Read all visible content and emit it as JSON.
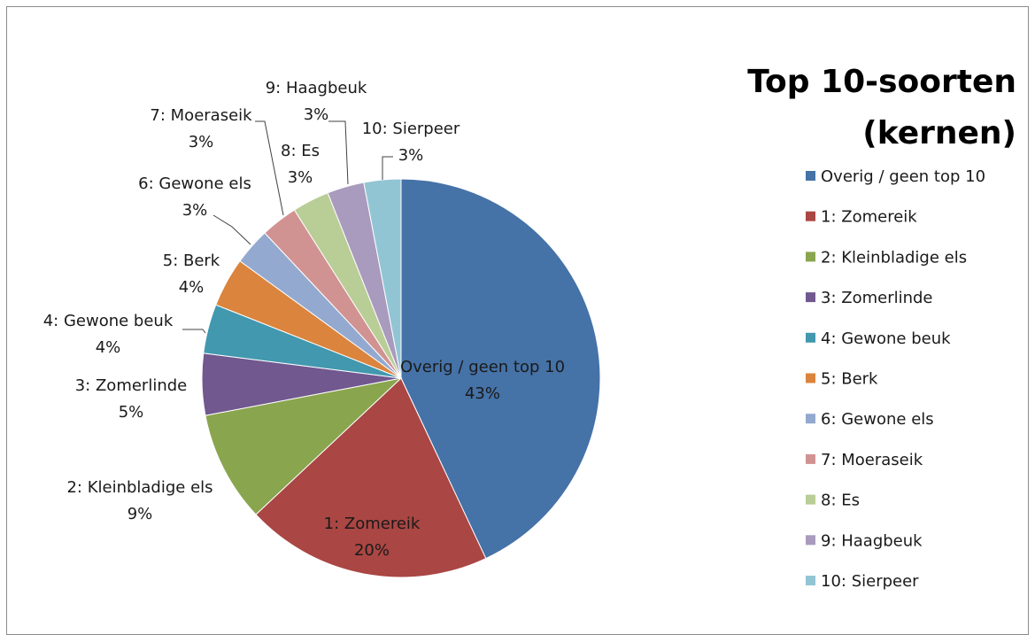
{
  "chart_data": {
    "type": "pie",
    "title_lines": [
      "Top 10-soorten",
      "(kernen)"
    ],
    "legend_position": "right",
    "slices": [
      {
        "name": "Overig / geen top 10",
        "value": 43,
        "label": "43%",
        "color": "#4572a7"
      },
      {
        "name": "1: Zomereik",
        "value": 20,
        "label": "20%",
        "color": "#aa4643"
      },
      {
        "name": "2: Kleinbladige els",
        "value": 9,
        "label": "9%",
        "color": "#89a54e"
      },
      {
        "name": "3: Zomerlinde",
        "value": 5,
        "label": "5%",
        "color": "#71588f"
      },
      {
        "name": "4: Gewone beuk",
        "value": 4,
        "label": "4%",
        "color": "#4198af"
      },
      {
        "name": "5: Berk",
        "value": 4,
        "label": "4%",
        "color": "#db843d"
      },
      {
        "name": "6: Gewone els",
        "value": 3,
        "label": "3%",
        "color": "#93a9cf"
      },
      {
        "name": "7: Moeraseik",
        "value": 3,
        "label": "3%",
        "color": "#d19392"
      },
      {
        "name": "8: Es",
        "value": 3,
        "label": "3%",
        "color": "#b9cd96"
      },
      {
        "name": "9: Haagbeuk",
        "value": 3,
        "label": "3%",
        "color": "#a99bbd"
      },
      {
        "name": "10: Sierpeer",
        "value": 3,
        "label": "3%",
        "color": "#92c5d4"
      }
    ]
  }
}
